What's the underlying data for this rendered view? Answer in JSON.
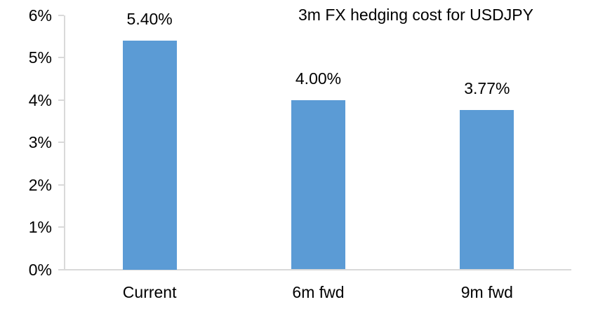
{
  "chart_data": {
    "type": "bar",
    "title": "3m FX hedging cost for USDJPY",
    "categories": [
      "Current",
      "6m fwd",
      "9m fwd"
    ],
    "values": [
      5.4,
      4.0,
      3.77
    ],
    "data_labels": [
      "5.40%",
      "4.00%",
      "3.77%"
    ],
    "y_tick_values": [
      0,
      1,
      2,
      3,
      4,
      5,
      6
    ],
    "y_tick_labels": [
      "0%",
      "1%",
      "2%",
      "3%",
      "4%",
      "5%",
      "6%"
    ],
    "ylim": [
      0,
      6
    ],
    "xlabel": "",
    "ylabel": "",
    "grid": "off",
    "legend": "none",
    "colors": {
      "bar": "#5B9BD5",
      "axis": "#D9D9D9",
      "text": "#000000"
    }
  }
}
